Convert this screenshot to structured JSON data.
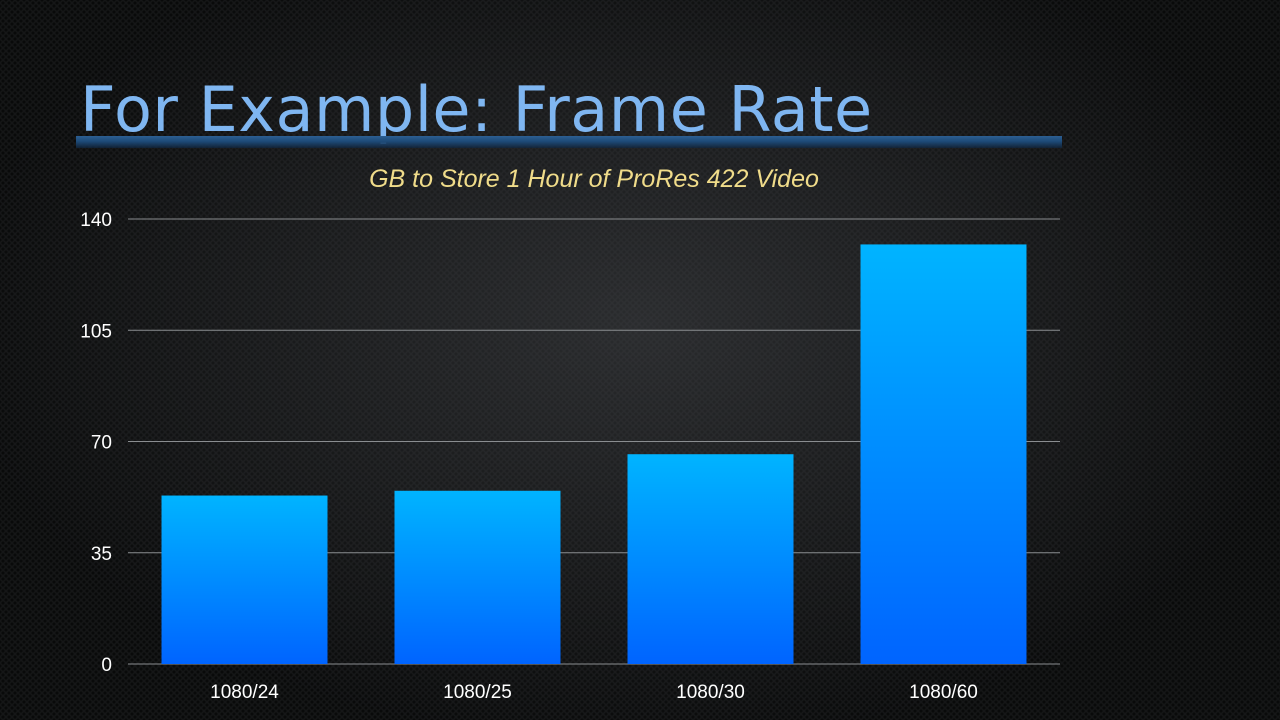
{
  "slide": {
    "title": "For Example: Frame Rate"
  },
  "colors": {
    "title": "#7fb6f1",
    "rule": "#2c5f93",
    "chart_title": "#f0dc8a",
    "bar_top": "#00b4ff",
    "bar_bottom": "#0064ff",
    "grid": "#8a8d90",
    "tick_text": "#ffffff"
  },
  "chart_data": {
    "type": "bar",
    "title": "GB to Store 1 Hour of ProRes 422 Video",
    "xlabel": "",
    "ylabel": "",
    "categories": [
      "1080/24",
      "1080/25",
      "1080/30",
      "1080/60"
    ],
    "values": [
      53,
      54.5,
      66,
      132
    ],
    "ylim": [
      0,
      140
    ],
    "yticks": [
      0,
      35,
      70,
      105,
      140
    ],
    "grid": true,
    "legend": "none"
  }
}
